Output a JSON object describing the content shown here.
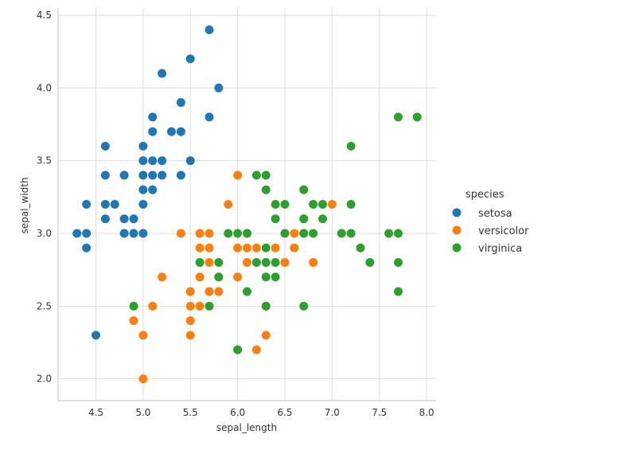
{
  "chart_data": {
    "type": "scatter",
    "title": "",
    "xlabel": "sepal_length",
    "ylabel": "sepal_width",
    "xlim": [
      4.1,
      8.1
    ],
    "ylim": [
      1.85,
      4.55
    ],
    "xticks": [
      4.5,
      5.0,
      5.5,
      6.0,
      6.5,
      7.0,
      7.5,
      8.0
    ],
    "yticks": [
      2.0,
      2.5,
      3.0,
      3.5,
      4.0,
      4.5
    ],
    "xtick_labels": [
      "4.5",
      "5.0",
      "5.5",
      "6.0",
      "6.5",
      "7.0",
      "7.5",
      "8.0"
    ],
    "ytick_labels": [
      "2.0",
      "2.5",
      "3.0",
      "3.5",
      "4.0",
      "4.5"
    ],
    "grid": true,
    "legend": {
      "title": "species",
      "placement": "right"
    },
    "series": [
      {
        "name": "setosa",
        "color": "#1f77b4",
        "points": [
          [
            4.3,
            3.0
          ],
          [
            4.4,
            3.0
          ],
          [
            4.4,
            3.2
          ],
          [
            4.4,
            2.9
          ],
          [
            4.5,
            2.3
          ],
          [
            4.6,
            3.6
          ],
          [
            4.6,
            3.4
          ],
          [
            4.6,
            3.2
          ],
          [
            4.6,
            3.1
          ],
          [
            4.7,
            3.2
          ],
          [
            4.8,
            3.4
          ],
          [
            4.8,
            3.1
          ],
          [
            4.8,
            3.0
          ],
          [
            4.9,
            3.1
          ],
          [
            4.9,
            3.0
          ],
          [
            5.0,
            3.6
          ],
          [
            5.0,
            3.5
          ],
          [
            5.0,
            3.4
          ],
          [
            5.0,
            3.3
          ],
          [
            5.0,
            3.2
          ],
          [
            5.0,
            3.0
          ],
          [
            5.1,
            3.8
          ],
          [
            5.1,
            3.7
          ],
          [
            5.1,
            3.5
          ],
          [
            5.1,
            3.4
          ],
          [
            5.1,
            3.3
          ],
          [
            5.2,
            4.1
          ],
          [
            5.2,
            3.5
          ],
          [
            5.2,
            3.4
          ],
          [
            5.3,
            3.7
          ],
          [
            5.4,
            3.9
          ],
          [
            5.4,
            3.7
          ],
          [
            5.4,
            3.4
          ],
          [
            5.5,
            4.2
          ],
          [
            5.5,
            3.5
          ],
          [
            5.7,
            4.4
          ],
          [
            5.7,
            3.8
          ],
          [
            5.8,
            4.0
          ]
        ]
      },
      {
        "name": "versicolor",
        "color": "#ff7f0e",
        "points": [
          [
            4.9,
            2.4
          ],
          [
            5.0,
            2.3
          ],
          [
            5.0,
            2.0
          ],
          [
            5.1,
            2.5
          ],
          [
            5.2,
            2.7
          ],
          [
            5.4,
            3.0
          ],
          [
            5.5,
            2.6
          ],
          [
            5.5,
            2.5
          ],
          [
            5.5,
            2.4
          ],
          [
            5.5,
            2.3
          ],
          [
            5.6,
            3.0
          ],
          [
            5.6,
            2.9
          ],
          [
            5.6,
            2.7
          ],
          [
            5.6,
            2.5
          ],
          [
            5.7,
            3.0
          ],
          [
            5.7,
            2.9
          ],
          [
            5.7,
            2.8
          ],
          [
            5.7,
            2.6
          ],
          [
            5.8,
            2.7
          ],
          [
            5.8,
            2.6
          ],
          [
            5.9,
            3.2
          ],
          [
            6.0,
            3.4
          ],
          [
            6.0,
            2.9
          ],
          [
            6.0,
            2.7
          ],
          [
            6.0,
            2.2
          ],
          [
            6.1,
            3.0
          ],
          [
            6.1,
            2.9
          ],
          [
            6.1,
            2.8
          ],
          [
            6.2,
            2.9
          ],
          [
            6.2,
            2.2
          ],
          [
            6.3,
            2.5
          ],
          [
            6.3,
            2.3
          ],
          [
            6.4,
            2.9
          ],
          [
            6.5,
            2.8
          ],
          [
            6.6,
            3.0
          ],
          [
            6.6,
            2.9
          ],
          [
            6.7,
            3.1
          ],
          [
            6.7,
            3.0
          ],
          [
            6.8,
            2.8
          ],
          [
            7.0,
            3.2
          ]
        ]
      },
      {
        "name": "virginica",
        "color": "#2ca02c",
        "points": [
          [
            4.9,
            2.5
          ],
          [
            5.6,
            2.8
          ],
          [
            5.7,
            2.5
          ],
          [
            5.8,
            2.8
          ],
          [
            5.8,
            2.7
          ],
          [
            5.9,
            3.0
          ],
          [
            6.0,
            3.0
          ],
          [
            6.0,
            2.2
          ],
          [
            6.1,
            3.0
          ],
          [
            6.1,
            2.6
          ],
          [
            6.2,
            3.4
          ],
          [
            6.2,
            2.8
          ],
          [
            6.3,
            3.4
          ],
          [
            6.3,
            3.3
          ],
          [
            6.3,
            2.9
          ],
          [
            6.3,
            2.8
          ],
          [
            6.3,
            2.7
          ],
          [
            6.3,
            2.5
          ],
          [
            6.4,
            3.2
          ],
          [
            6.4,
            3.1
          ],
          [
            6.4,
            2.8
          ],
          [
            6.4,
            2.7
          ],
          [
            6.5,
            3.2
          ],
          [
            6.5,
            3.0
          ],
          [
            6.7,
            3.3
          ],
          [
            6.7,
            3.1
          ],
          [
            6.7,
            3.0
          ],
          [
            6.7,
            2.5
          ],
          [
            6.8,
            3.2
          ],
          [
            6.8,
            3.0
          ],
          [
            6.9,
            3.2
          ],
          [
            6.9,
            3.1
          ],
          [
            7.1,
            3.0
          ],
          [
            7.2,
            3.6
          ],
          [
            7.2,
            3.2
          ],
          [
            7.2,
            3.0
          ],
          [
            7.3,
            2.9
          ],
          [
            7.4,
            2.8
          ],
          [
            7.6,
            3.0
          ],
          [
            7.7,
            3.8
          ],
          [
            7.7,
            3.0
          ],
          [
            7.7,
            2.8
          ],
          [
            7.7,
            2.6
          ],
          [
            7.9,
            3.8
          ]
        ]
      }
    ]
  }
}
